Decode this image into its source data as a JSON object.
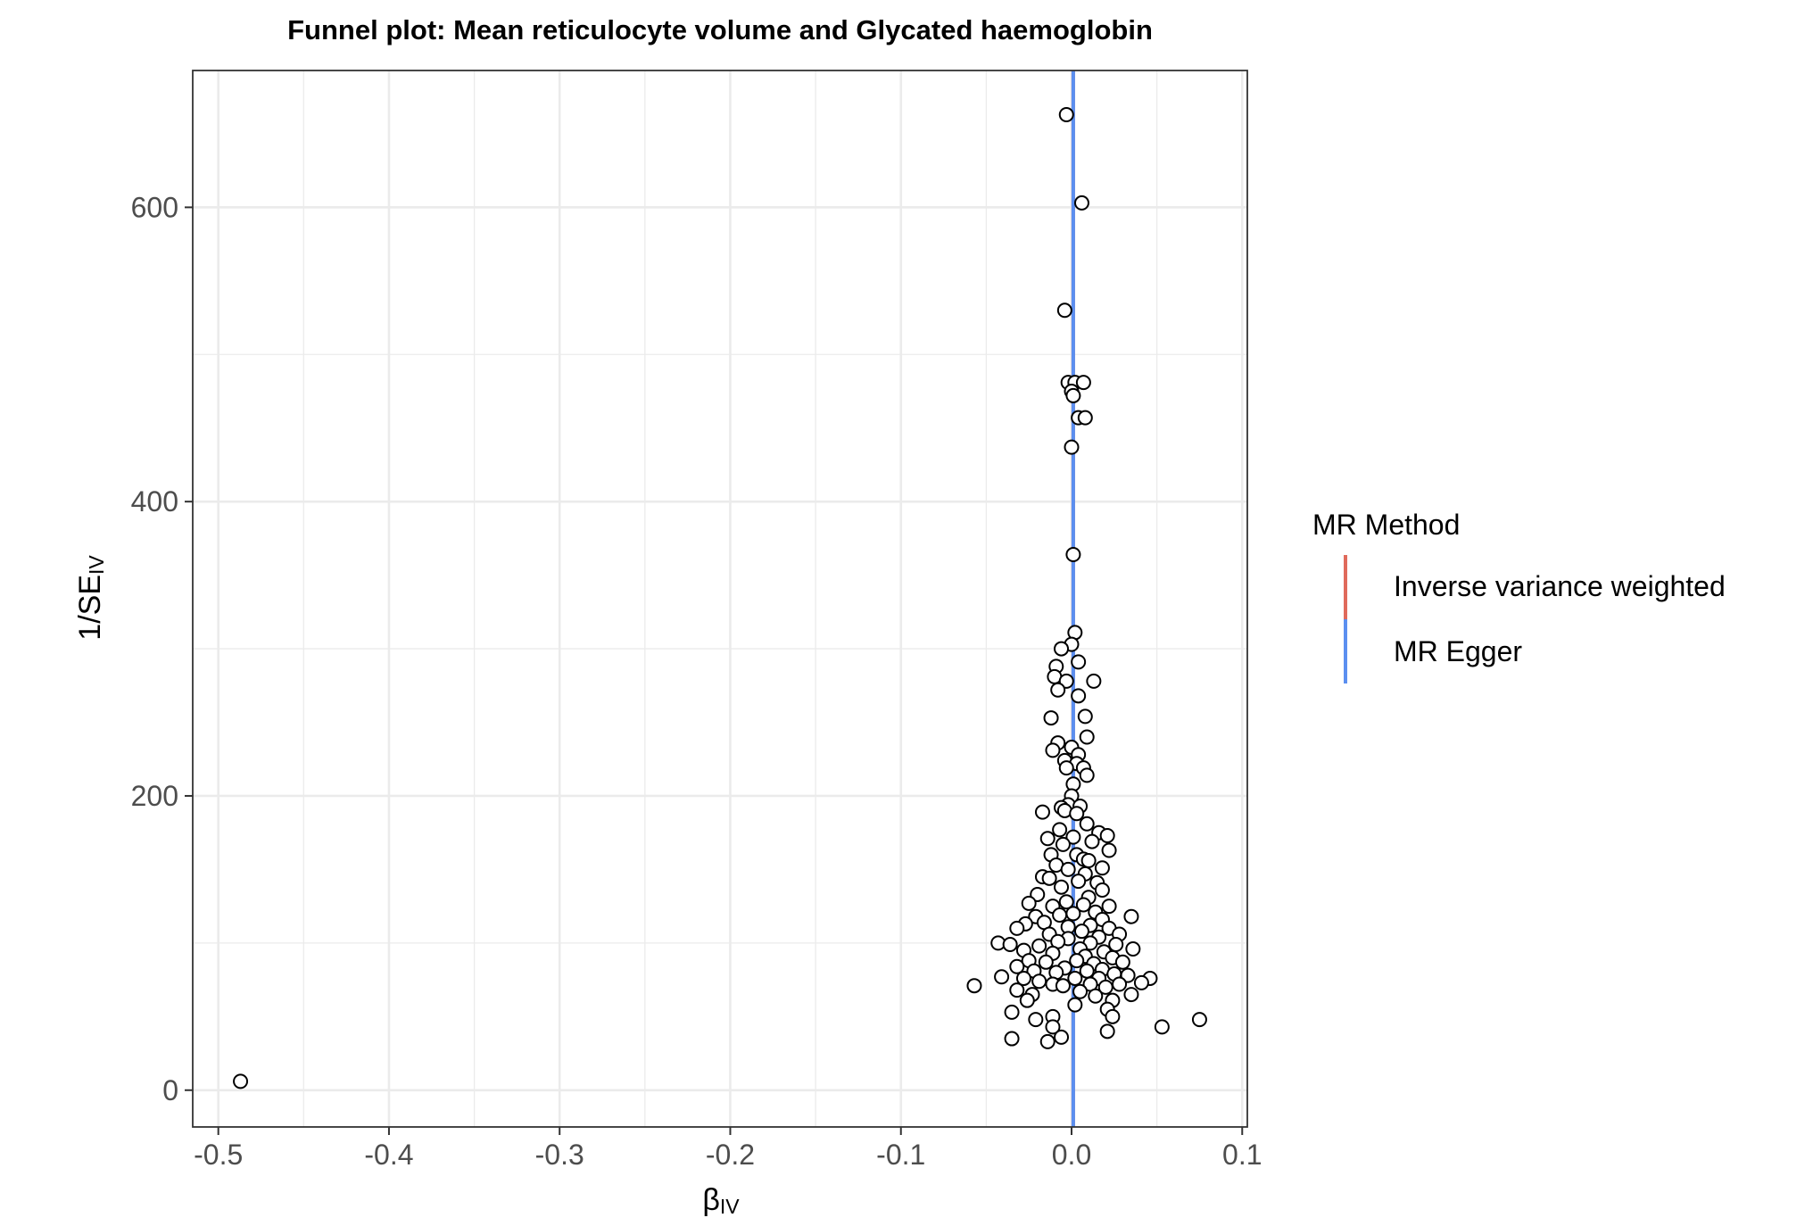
{
  "chart_data": {
    "type": "scatter",
    "title": "Funnel plot: Mean reticulocyte volume and Glycated haemoglobin",
    "xlabel": "β",
    "xlabel_sub": "IV",
    "ylabel": "1/SE",
    "ylabel_sub": "IV",
    "xlim": [
      -0.515,
      0.103
    ],
    "ylim": [
      -25,
      693
    ],
    "x_ticks": [
      -0.5,
      -0.4,
      -0.3,
      -0.2,
      -0.1,
      0.0,
      0.1
    ],
    "x_tick_labels": [
      "-0.5",
      "-0.4",
      "-0.3",
      "-0.2",
      "-0.1",
      "0.0",
      "0.1"
    ],
    "y_ticks": [
      0,
      200,
      400,
      600
    ],
    "y_tick_labels": [
      "0",
      "200",
      "400",
      "600"
    ],
    "grid": true,
    "legend": {
      "title": "MR Method",
      "placement": "right",
      "entries": [
        {
          "label": "Inverse variance weighted",
          "color": "#e06a5b"
        },
        {
          "label": "MR Egger",
          "color": "#5b8ff0"
        }
      ]
    },
    "lines": [
      {
        "name": "Inverse variance weighted",
        "x": 0.001,
        "color": "#e06a5b"
      },
      {
        "name": "MR Egger",
        "x": 0.001,
        "color": "#5b8ff0"
      }
    ],
    "points": [
      [
        -0.487,
        6
      ],
      [
        -0.057,
        71
      ],
      [
        0.075,
        48
      ],
      [
        0.053,
        43
      ],
      [
        -0.003,
        663
      ],
      [
        0.006,
        603
      ],
      [
        -0.004,
        530
      ],
      [
        -0.002,
        481
      ],
      [
        0.002,
        481
      ],
      [
        0.007,
        481
      ],
      [
        0.0,
        475
      ],
      [
        0.001,
        472
      ],
      [
        0.004,
        457
      ],
      [
        0.008,
        457
      ],
      [
        0.0,
        437
      ],
      [
        0.001,
        364
      ],
      [
        0.002,
        311
      ],
      [
        0.0,
        303
      ],
      [
        -0.006,
        300
      ],
      [
        0.004,
        291
      ],
      [
        -0.009,
        288
      ],
      [
        -0.01,
        281
      ],
      [
        0.013,
        278
      ],
      [
        -0.003,
        278
      ],
      [
        -0.008,
        272
      ],
      [
        0.004,
        268
      ],
      [
        -0.012,
        253
      ],
      [
        0.008,
        254
      ],
      [
        0.009,
        240
      ],
      [
        -0.008,
        236
      ],
      [
        0.0,
        233
      ],
      [
        -0.011,
        231
      ],
      [
        0.004,
        228
      ],
      [
        -0.004,
        224
      ],
      [
        0.003,
        222
      ],
      [
        0.007,
        219
      ],
      [
        -0.003,
        219
      ],
      [
        0.009,
        214
      ],
      [
        0.001,
        208
      ],
      [
        0.0,
        200
      ],
      [
        -0.002,
        194
      ],
      [
        0.005,
        193
      ],
      [
        -0.006,
        192
      ],
      [
        -0.017,
        189
      ],
      [
        -0.004,
        190
      ],
      [
        0.009,
        181
      ],
      [
        0.003,
        188
      ],
      [
        -0.007,
        177
      ],
      [
        0.016,
        175
      ],
      [
        0.021,
        173
      ],
      [
        0.001,
        172
      ],
      [
        -0.014,
        171
      ],
      [
        0.012,
        169
      ],
      [
        -0.005,
        167
      ],
      [
        0.022,
        163
      ],
      [
        0.003,
        160
      ],
      [
        0.007,
        157
      ],
      [
        -0.012,
        160
      ],
      [
        0.01,
        156
      ],
      [
        -0.009,
        153
      ],
      [
        0.018,
        151
      ],
      [
        -0.002,
        150
      ],
      [
        0.008,
        147
      ],
      [
        -0.017,
        145
      ],
      [
        0.004,
        142
      ],
      [
        -0.013,
        144
      ],
      [
        0.015,
        141
      ],
      [
        -0.006,
        138
      ],
      [
        0.018,
        136
      ],
      [
        -0.02,
        133
      ],
      [
        0.01,
        131
      ],
      [
        -0.003,
        128
      ],
      [
        -0.025,
        127
      ],
      [
        0.022,
        125
      ],
      [
        0.007,
        126
      ],
      [
        -0.011,
        125
      ],
      [
        0.001,
        120
      ],
      [
        0.014,
        121
      ],
      [
        -0.007,
        119
      ],
      [
        -0.021,
        118
      ],
      [
        0.035,
        118
      ],
      [
        0.018,
        116
      ],
      [
        -0.016,
        114
      ],
      [
        -0.027,
        113
      ],
      [
        0.011,
        112
      ],
      [
        -0.002,
        111
      ],
      [
        0.022,
        110
      ],
      [
        -0.032,
        110
      ],
      [
        0.006,
        108
      ],
      [
        -0.013,
        106
      ],
      [
        0.028,
        106
      ],
      [
        0.016,
        104
      ],
      [
        -0.002,
        103
      ],
      [
        -0.008,
        101
      ],
      [
        0.011,
        100
      ],
      [
        -0.043,
        100
      ],
      [
        -0.036,
        99
      ],
      [
        0.026,
        99
      ],
      [
        -0.019,
        98
      ],
      [
        0.005,
        96
      ],
      [
        -0.028,
        95
      ],
      [
        0.019,
        94
      ],
      [
        0.036,
        96
      ],
      [
        -0.011,
        93
      ],
      [
        0.008,
        91
      ],
      [
        0.024,
        90
      ],
      [
        -0.025,
        88
      ],
      [
        0.003,
        88
      ],
      [
        -0.015,
        87
      ],
      [
        0.013,
        86
      ],
      [
        0.03,
        87
      ],
      [
        -0.032,
        84
      ],
      [
        -0.004,
        83
      ],
      [
        0.018,
        82
      ],
      [
        -0.022,
        81
      ],
      [
        0.009,
        81
      ],
      [
        -0.009,
        80
      ],
      [
        0.025,
        79
      ],
      [
        0.033,
        78
      ],
      [
        -0.041,
        77
      ],
      [
        0.002,
        76
      ],
      [
        -0.028,
        76
      ],
      [
        0.016,
        76
      ],
      [
        0.046,
        76
      ],
      [
        -0.019,
        74
      ],
      [
        0.041,
        73
      ],
      [
        0.011,
        72
      ],
      [
        -0.011,
        72
      ],
      [
        0.028,
        72
      ],
      [
        -0.005,
        71
      ],
      [
        0.02,
        70
      ],
      [
        -0.032,
        68
      ],
      [
        0.005,
        67
      ],
      [
        0.035,
        65
      ],
      [
        -0.023,
        65
      ],
      [
        0.014,
        64
      ],
      [
        0.024,
        61
      ],
      [
        -0.026,
        61
      ],
      [
        0.002,
        58
      ],
      [
        0.021,
        55
      ],
      [
        -0.035,
        53
      ],
      [
        0.024,
        50
      ],
      [
        -0.021,
        48
      ],
      [
        -0.011,
        50
      ],
      [
        -0.011,
        43
      ],
      [
        0.021,
        40
      ],
      [
        -0.006,
        36
      ],
      [
        -0.035,
        35
      ],
      [
        -0.014,
        33
      ]
    ]
  }
}
